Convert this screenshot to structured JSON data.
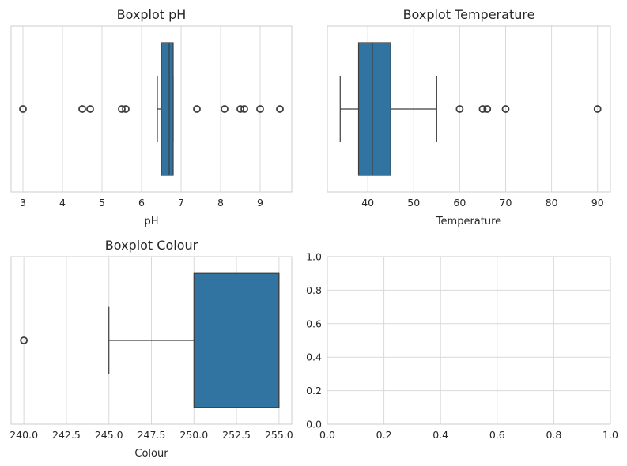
{
  "chart_data": [
    {
      "type": "boxplot",
      "title": "Boxplot pH",
      "xlabel": "pH",
      "xlim": [
        2.7,
        9.8
      ],
      "xticks": [
        3,
        4,
        5,
        6,
        7,
        8,
        9
      ],
      "xtick_labels": [
        "3",
        "4",
        "5",
        "6",
        "7",
        "8",
        "9"
      ],
      "grid": true,
      "box": {
        "whisker_low": 6.4,
        "q1": 6.5,
        "median": 6.7,
        "q3": 6.8,
        "whisker_high": 6.8
      },
      "outliers": [
        3.0,
        4.5,
        4.7,
        5.5,
        5.6,
        7.4,
        8.1,
        8.5,
        8.6,
        9.0,
        9.5
      ]
    },
    {
      "type": "boxplot",
      "title": "Boxplot Temperature",
      "xlabel": "Temperature",
      "xlim": [
        31.2,
        92.8
      ],
      "xticks": [
        40,
        50,
        60,
        70,
        80,
        90
      ],
      "xtick_labels": [
        "40",
        "50",
        "60",
        "70",
        "80",
        "90"
      ],
      "grid": true,
      "box": {
        "whisker_low": 34,
        "q1": 38,
        "median": 41,
        "q3": 45,
        "whisker_high": 55
      },
      "outliers": [
        60,
        65,
        66,
        70,
        90
      ]
    },
    {
      "type": "boxplot",
      "title": "Boxplot Colour",
      "xlabel": "Colour",
      "xlim": [
        239.25,
        255.75
      ],
      "xticks": [
        240.0,
        242.5,
        245.0,
        247.5,
        250.0,
        252.5,
        255.0
      ],
      "xtick_labels": [
        "240.0",
        "242.5",
        "245.0",
        "247.5",
        "250.0",
        "252.5",
        "255.0"
      ],
      "grid": true,
      "box": {
        "whisker_low": 245,
        "q1": 250,
        "median": 255,
        "q3": 255,
        "whisker_high": 255
      },
      "outliers": [
        240
      ]
    },
    {
      "type": "empty",
      "title": "",
      "xlim": [
        0,
        1
      ],
      "ylim": [
        0,
        1
      ],
      "xticks": [
        0.0,
        0.2,
        0.4,
        0.6,
        0.8,
        1.0
      ],
      "xtick_labels": [
        "0.0",
        "0.2",
        "0.4",
        "0.6",
        "0.8",
        "1.0"
      ],
      "yticks": [
        0.0,
        0.2,
        0.4,
        0.6,
        0.8,
        1.0
      ],
      "ytick_labels": [
        "0.0",
        "0.2",
        "0.4",
        "0.6",
        "0.8",
        "1.0"
      ],
      "grid": true
    }
  ],
  "colors": {
    "box_fill": "#3274a1",
    "line": "#3d3d3d",
    "grid": "#d9d9d9",
    "spine": "#cccccc",
    "text": "#262626"
  }
}
